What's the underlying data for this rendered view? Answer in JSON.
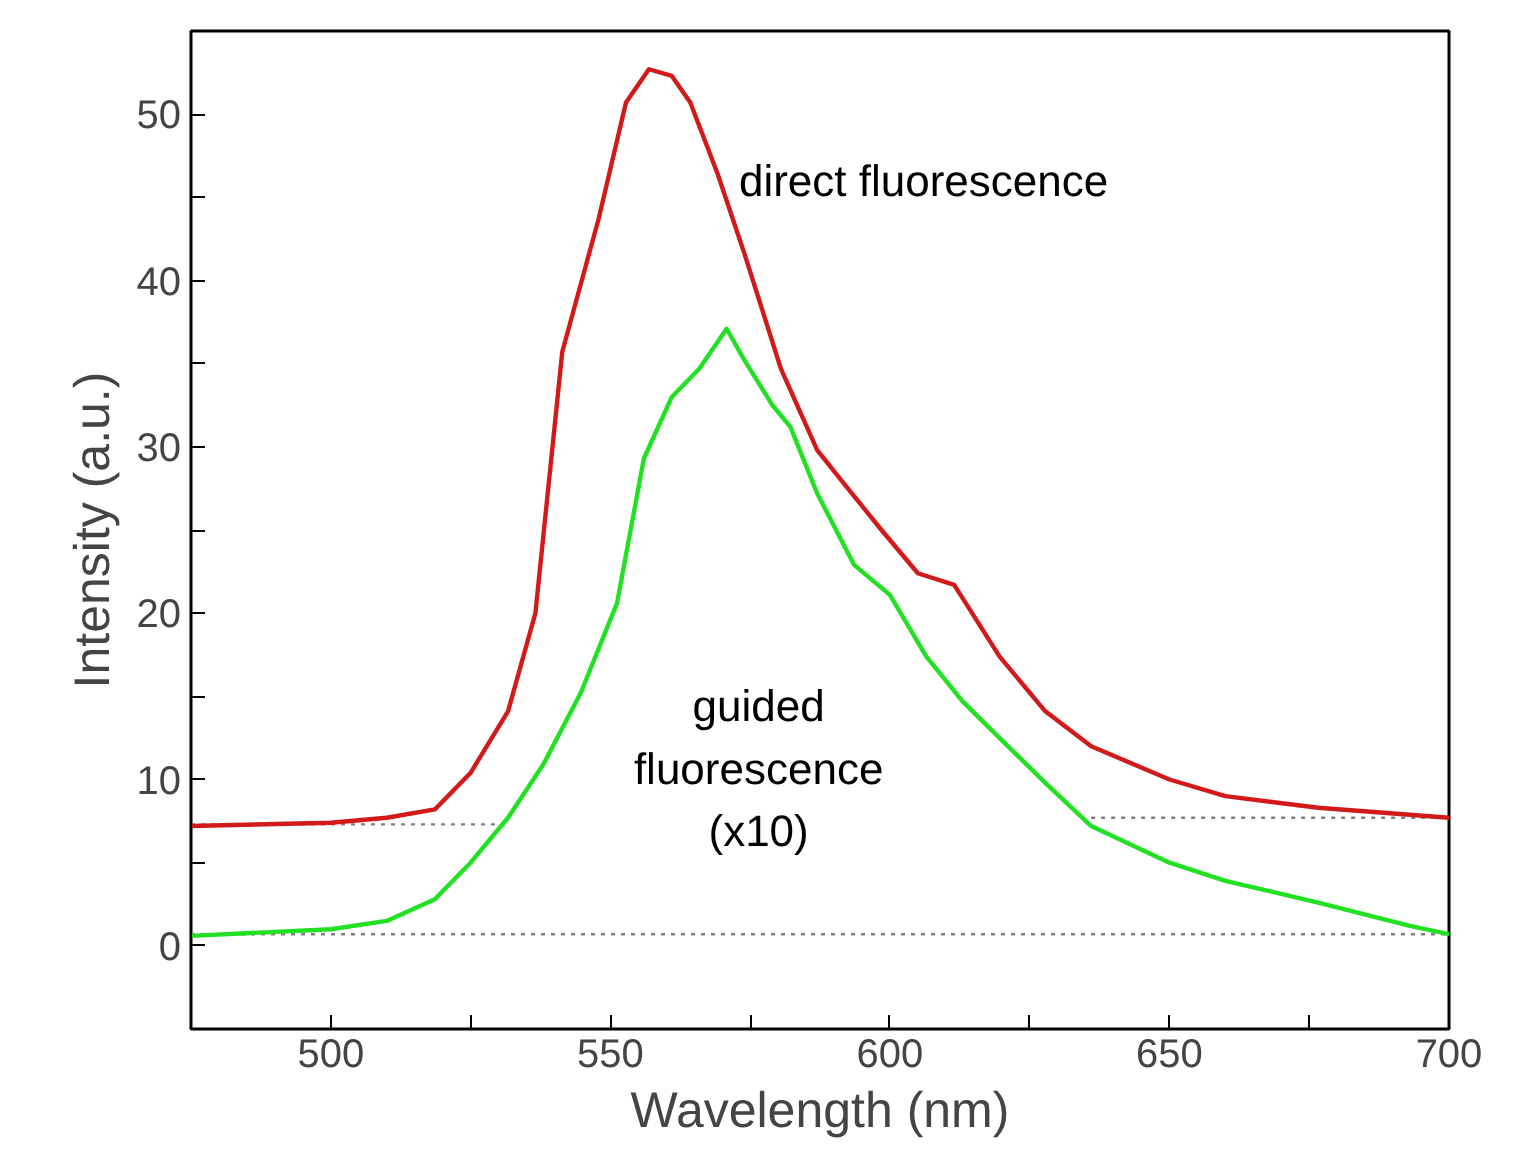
{
  "chart_data": {
    "type": "line",
    "xlabel": "Wavelength (nm)",
    "ylabel": "Intensity (a.u.)",
    "xlim": [
      475,
      700
    ],
    "ylim": [
      -5,
      55
    ],
    "xticks": [
      500,
      {
        "value": 525,
        "label": null
      },
      550,
      {
        "value": 575,
        "label": null
      },
      600,
      {
        "value": 625,
        "label": null
      },
      650,
      {
        "value": 675,
        "label": null
      },
      700
    ],
    "yticks": [
      0,
      {
        "value": 5,
        "label": null
      },
      10,
      {
        "value": 15,
        "label": null
      },
      20,
      {
        "value": 25,
        "label": null
      },
      30,
      {
        "value": 35,
        "label": null
      },
      40,
      {
        "value": 45,
        "label": null
      },
      50
    ],
    "grid": false,
    "marker": "none",
    "series": [
      {
        "color": "#808080",
        "line_style": "dotted",
        "x": [
          475,
          532,
          584,
          636,
          700
        ],
        "values": [
          7.3,
          7.3,
          null,
          7.7,
          7.7
        ]
      },
      {
        "color": "#808080",
        "line_style": "dotted",
        "x": [
          475,
          700
        ],
        "values": [
          0.7,
          0.7
        ]
      },
      {
        "name": "direct fluorescence",
        "color": "#d21a1a",
        "line_style": "solid",
        "x": [
          475,
          500,
          510,
          518.6,
          525,
          531.7,
          536.6,
          541.4,
          547.9,
          552.8,
          556.9,
          561,
          564.3,
          569.2,
          574,
          580.5,
          587,
          592,
          598.5,
          605,
          611.5,
          619.6,
          627.8,
          636,
          650,
          660,
          676.6,
          700
        ],
        "values": [
          7.2,
          7.4,
          7.7,
          8.2,
          10.4,
          14.1,
          20,
          35.7,
          43.7,
          50.7,
          52.7,
          52.3,
          50.7,
          46.4,
          41.6,
          34.7,
          29.8,
          27.7,
          25,
          22.4,
          21.7,
          17.4,
          14.1,
          12,
          10,
          9,
          8.3,
          7.7
        ]
      },
      {
        "name": "guided\nfluorescence\n(x10)",
        "color": "#22e022",
        "line_style": "solid",
        "x": [
          475,
          500,
          510,
          518.6,
          525,
          531.7,
          538,
          544.7,
          551.2,
          556,
          561,
          565.9,
          570.8,
          574,
          579,
          582.2,
          587,
          593.6,
          600,
          606.5,
          613,
          619.6,
          627.8,
          636,
          650,
          660,
          676.6,
          693,
          700
        ],
        "values": [
          0.6,
          1.0,
          1.5,
          2.8,
          5,
          7.7,
          10.9,
          15.2,
          20.6,
          29.3,
          33,
          34.7,
          37.1,
          35.2,
          32.5,
          31.2,
          27.2,
          22.9,
          21.1,
          17.4,
          14.7,
          12.5,
          9.8,
          7.2,
          5,
          3.9,
          2.6,
          1.2,
          0.7
        ]
      }
    ]
  }
}
